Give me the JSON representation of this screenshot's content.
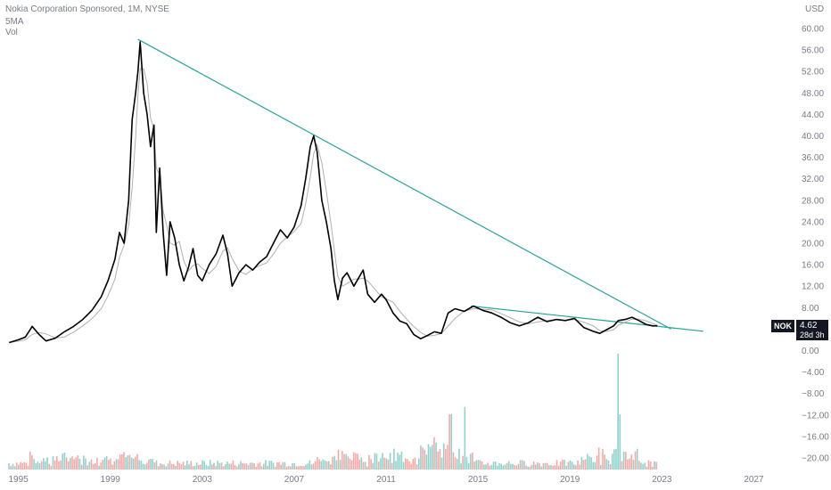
{
  "header": {
    "title": "Nokia Corporation Sponsored, 1M, NYSE",
    "ma_label": "5MA",
    "vol_label": "Vol",
    "currency": "USD"
  },
  "badge": {
    "symbol": "NOK",
    "price": "4.62",
    "countdown": "28d 3h"
  },
  "colors": {
    "price_line": "#000000",
    "ma_line": "#b0b0b0",
    "trend_line": "#26a69a",
    "vol_up": "#8fd3cc",
    "vol_down": "#f5a9a6",
    "axis_text": "#787b86"
  },
  "chart_data": {
    "type": "line",
    "title": "Nokia Corporation Sponsored, 1M, NYSE",
    "xlabel": "",
    "ylabel": "",
    "ylim": [
      -20,
      60
    ],
    "xlim": [
      1994.2,
      2029.0
    ],
    "grid": false,
    "y_ticks": [
      "60.00",
      "56.00",
      "52.00",
      "48.00",
      "44.00",
      "40.00",
      "36.00",
      "32.00",
      "28.00",
      "24.00",
      "20.00",
      "16.00",
      "12.00",
      "8.00",
      "4.00",
      "0.00",
      "−4.00",
      "−8.00",
      "−12.00",
      "−16.00",
      "−20.00"
    ],
    "y_tick_values": [
      60,
      56,
      52,
      48,
      44,
      40,
      36,
      32,
      28,
      24,
      20,
      16,
      12,
      8,
      4,
      0,
      -4,
      -8,
      -12,
      -16,
      -20
    ],
    "x_ticks": [
      "1995",
      "1999",
      "2003",
      "2007",
      "2011",
      "2015",
      "2019",
      "2023",
      "2027"
    ],
    "x_tick_values": [
      1995,
      1999,
      2003,
      2007,
      2011,
      2015,
      2019,
      2023,
      2027
    ],
    "series": [
      {
        "values_xy": [
          [
            1994.6,
            1.5
          ],
          [
            1995.0,
            2.0
          ],
          [
            1995.3,
            2.5
          ],
          [
            1995.6,
            4.5
          ],
          [
            1995.9,
            3.0
          ],
          [
            1996.2,
            1.8
          ],
          [
            1996.6,
            2.3
          ],
          [
            1997.0,
            3.5
          ],
          [
            1997.4,
            4.5
          ],
          [
            1997.8,
            5.8
          ],
          [
            1998.2,
            7.5
          ],
          [
            1998.6,
            10.0
          ],
          [
            1998.9,
            13.0
          ],
          [
            1999.2,
            17.0
          ],
          [
            1999.4,
            22.0
          ],
          [
            1999.6,
            20.0
          ],
          [
            1999.8,
            28.0
          ],
          [
            1999.95,
            43.0
          ],
          [
            2000.1,
            48.0
          ],
          [
            2000.2,
            52.0
          ],
          [
            2000.3,
            57.5
          ],
          [
            2000.45,
            48.0
          ],
          [
            2000.6,
            44.0
          ],
          [
            2000.75,
            38.0
          ],
          [
            2000.9,
            42.0
          ],
          [
            2001.0,
            22.0
          ],
          [
            2001.15,
            34.0
          ],
          [
            2001.3,
            22.0
          ],
          [
            2001.45,
            14.0
          ],
          [
            2001.6,
            24.0
          ],
          [
            2001.8,
            21.0
          ],
          [
            2002.0,
            16.0
          ],
          [
            2002.2,
            13.0
          ],
          [
            2002.4,
            15.5
          ],
          [
            2002.6,
            19.0
          ],
          [
            2002.8,
            14.0
          ],
          [
            2003.0,
            13.0
          ],
          [
            2003.3,
            16.0
          ],
          [
            2003.6,
            18.0
          ],
          [
            2003.9,
            21.5
          ],
          [
            2004.1,
            18.0
          ],
          [
            2004.3,
            12.0
          ],
          [
            2004.6,
            14.5
          ],
          [
            2004.9,
            16.0
          ],
          [
            2005.2,
            15.0
          ],
          [
            2005.5,
            16.5
          ],
          [
            2005.8,
            17.5
          ],
          [
            2006.1,
            20.0
          ],
          [
            2006.4,
            22.5
          ],
          [
            2006.7,
            21.0
          ],
          [
            2007.0,
            23.0
          ],
          [
            2007.3,
            27.0
          ],
          [
            2007.5,
            32.0
          ],
          [
            2007.7,
            38.0
          ],
          [
            2007.85,
            40.0
          ],
          [
            2008.0,
            37.0
          ],
          [
            2008.2,
            28.0
          ],
          [
            2008.4,
            24.0
          ],
          [
            2008.6,
            19.0
          ],
          [
            2008.75,
            13.0
          ],
          [
            2008.9,
            9.5
          ],
          [
            2009.1,
            13.5
          ],
          [
            2009.3,
            14.5
          ],
          [
            2009.6,
            12.0
          ],
          [
            2009.8,
            13.5
          ],
          [
            2010.0,
            15.0
          ],
          [
            2010.2,
            10.5
          ],
          [
            2010.5,
            9.0
          ],
          [
            2010.8,
            10.5
          ],
          [
            2011.0,
            9.5
          ],
          [
            2011.3,
            7.0
          ],
          [
            2011.6,
            5.5
          ],
          [
            2011.9,
            5.0
          ],
          [
            2012.2,
            3.0
          ],
          [
            2012.5,
            2.2
          ],
          [
            2012.8,
            2.8
          ],
          [
            2013.1,
            3.5
          ],
          [
            2013.4,
            3.2
          ],
          [
            2013.7,
            7.0
          ],
          [
            2014.0,
            7.8
          ],
          [
            2014.4,
            7.3
          ],
          [
            2014.8,
            8.3
          ],
          [
            2015.2,
            7.5
          ],
          [
            2015.6,
            7.0
          ],
          [
            2016.0,
            6.2
          ],
          [
            2016.4,
            5.2
          ],
          [
            2016.8,
            4.6
          ],
          [
            2017.2,
            5.2
          ],
          [
            2017.6,
            6.2
          ],
          [
            2018.0,
            5.4
          ],
          [
            2018.4,
            5.8
          ],
          [
            2018.8,
            5.6
          ],
          [
            2019.2,
            6.0
          ],
          [
            2019.6,
            4.3
          ],
          [
            2020.0,
            3.6
          ],
          [
            2020.3,
            3.2
          ],
          [
            2020.6,
            3.9
          ],
          [
            2020.9,
            4.6
          ],
          [
            2021.1,
            5.6
          ],
          [
            2021.4,
            5.8
          ],
          [
            2021.7,
            6.2
          ],
          [
            2022.0,
            5.6
          ],
          [
            2022.3,
            4.9
          ],
          [
            2022.6,
            4.6
          ],
          [
            2022.8,
            4.62
          ]
        ]
      }
    ],
    "trendlines": [
      {
        "from": [
          2000.2,
          58.0
        ],
        "to": [
          2023.4,
          4.0
        ]
      },
      {
        "from": [
          2014.7,
          8.3
        ],
        "to": [
          2024.8,
          3.6
        ]
      }
    ],
    "volume_note": "volume histogram at chart bottom (relative heights, 0-1)"
  }
}
